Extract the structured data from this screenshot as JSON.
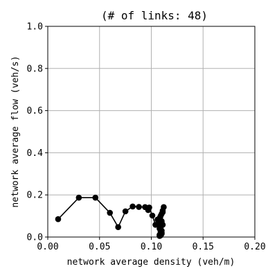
{
  "chart_data": {
    "type": "line",
    "title": "(# of links: 48)",
    "xlabel": "network average density (veh/m)",
    "ylabel": "network average flow (veh/s)",
    "xlim": [
      0.0,
      0.2
    ],
    "ylim": [
      0.0,
      1.0
    ],
    "xticks": [
      0.0,
      0.05,
      0.1,
      0.15,
      0.2
    ],
    "xtick_labels": [
      "0.00",
      "0.05",
      "0.10",
      "0.15",
      "0.20"
    ],
    "yticks": [
      0.0,
      0.2,
      0.4,
      0.6,
      0.8,
      1.0
    ],
    "ytick_labels": [
      "0.0",
      "0.2",
      "0.4",
      "0.6",
      "0.8",
      "1.0"
    ],
    "grid": true,
    "marker": "circle",
    "colors": {
      "series": "#000000",
      "grid": "#b0b0b0",
      "axes": "#000000"
    },
    "series": [
      {
        "x": [
          0.01,
          0.03,
          0.046,
          0.06,
          0.068,
          0.075,
          0.082,
          0.088,
          0.094,
          0.097,
          0.098,
          0.101,
          0.104,
          0.106,
          0.108,
          0.109,
          0.11,
          0.111,
          0.112,
          0.111,
          0.11,
          0.109,
          0.109,
          0.11,
          0.111,
          0.11,
          0.109,
          0.108,
          0.108,
          0.109,
          0.11,
          0.11,
          0.109,
          0.108,
          0.108,
          0.109
        ],
        "y": [
          0.085,
          0.187,
          0.187,
          0.115,
          0.047,
          0.122,
          0.145,
          0.143,
          0.142,
          0.128,
          0.14,
          0.102,
          0.058,
          0.083,
          0.09,
          0.1,
          0.11,
          0.125,
          0.142,
          0.118,
          0.075,
          0.06,
          0.045,
          0.03,
          0.058,
          0.07,
          0.08,
          0.06,
          0.04,
          0.025,
          0.015,
          0.02,
          0.01,
          0.01,
          0.005,
          0.008
        ]
      }
    ]
  }
}
